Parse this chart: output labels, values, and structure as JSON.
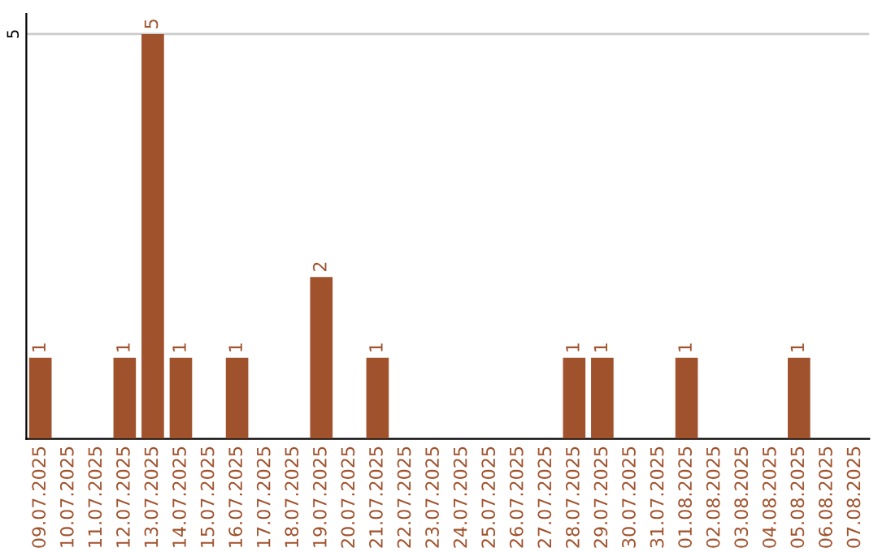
{
  "chart_data": {
    "type": "bar",
    "categories": [
      "09.07.2025",
      "10.07.2025",
      "11.07.2025",
      "12.07.2025",
      "13.07.2025",
      "14.07.2025",
      "15.07.2025",
      "16.07.2025",
      "17.07.2025",
      "18.07.2025",
      "19.07.2025",
      "20.07.2025",
      "21.07.2025",
      "22.07.2025",
      "23.07.2025",
      "24.07.2025",
      "25.07.2025",
      "26.07.2025",
      "27.07.2025",
      "28.07.2025",
      "29.07.2025",
      "30.07.2025",
      "31.07.2025",
      "01.08.2025",
      "02.08.2025",
      "03.08.2025",
      "04.08.2025",
      "05.08.2025",
      "06.08.2025",
      "07.08.2025"
    ],
    "values": [
      1,
      0,
      0,
      1,
      5,
      1,
      0,
      1,
      0,
      0,
      2,
      0,
      1,
      0,
      0,
      0,
      0,
      0,
      0,
      1,
      1,
      0,
      0,
      1,
      0,
      0,
      0,
      1,
      0,
      0
    ],
    "value_labels": [
      "1",
      null,
      null,
      "1",
      "5",
      "1",
      null,
      "1",
      null,
      null,
      "2",
      null,
      "1",
      null,
      null,
      null,
      null,
      null,
      null,
      "1",
      "1",
      null,
      null,
      "1",
      null,
      null,
      null,
      "1",
      null,
      null
    ],
    "color": "#a0522d",
    "ylim": [
      0,
      5.25
    ],
    "yticks": [
      5
    ],
    "grid": "y"
  }
}
